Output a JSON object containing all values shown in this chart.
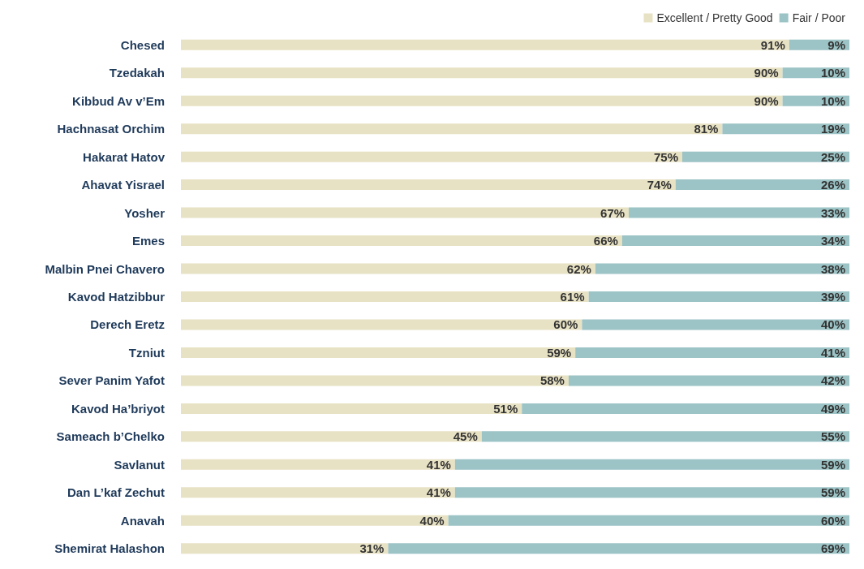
{
  "chart_data": {
    "type": "bar",
    "orientation": "horizontal",
    "stacked": true,
    "legend": "top right",
    "categories": [
      "Chesed",
      "Tzedakah",
      "Kibbud Av v’Em",
      "Hachnasat Orchim",
      "Hakarat Hatov",
      "Ahavat Yisrael",
      "Yosher",
      "Emes",
      "Malbin Pnei Chavero",
      "Kavod Hatzibbur",
      "Derech Eretz",
      "Tzniut",
      "Sever Panim Yafot",
      "Kavod Ha’briyot",
      "Sameach b’Chelko",
      "Savlanut",
      "Dan L’kaf Zechut",
      "Anavah",
      "Shemirat Halashon"
    ],
    "series": [
      {
        "name": "Excellent / Pretty Good",
        "color": "#e8e2c4",
        "values": [
          91,
          90,
          90,
          81,
          75,
          74,
          67,
          66,
          62,
          61,
          60,
          59,
          58,
          51,
          45,
          41,
          41,
          40,
          31
        ],
        "value_labels": [
          "91%",
          "90%",
          "90%",
          "81%",
          "75%",
          "74%",
          "67%",
          "66%",
          "62%",
          "61%",
          "60%",
          "59%",
          "58%",
          "51%",
          "45%",
          "41%",
          "41%",
          "40%",
          "31%"
        ]
      },
      {
        "name": "Fair / Poor",
        "color": "#9cc3c5",
        "values": [
          9,
          10,
          10,
          19,
          25,
          26,
          33,
          34,
          38,
          39,
          40,
          41,
          42,
          49,
          55,
          59,
          59,
          60,
          69
        ],
        "value_labels": [
          "9%",
          "10%",
          "10%",
          "19%",
          "25%",
          "26%",
          "33%",
          "34%",
          "38%",
          "39%",
          "40%",
          "41%",
          "42%",
          "49%",
          "55%",
          "59%",
          "59%",
          "60%",
          "69%"
        ]
      }
    ]
  }
}
